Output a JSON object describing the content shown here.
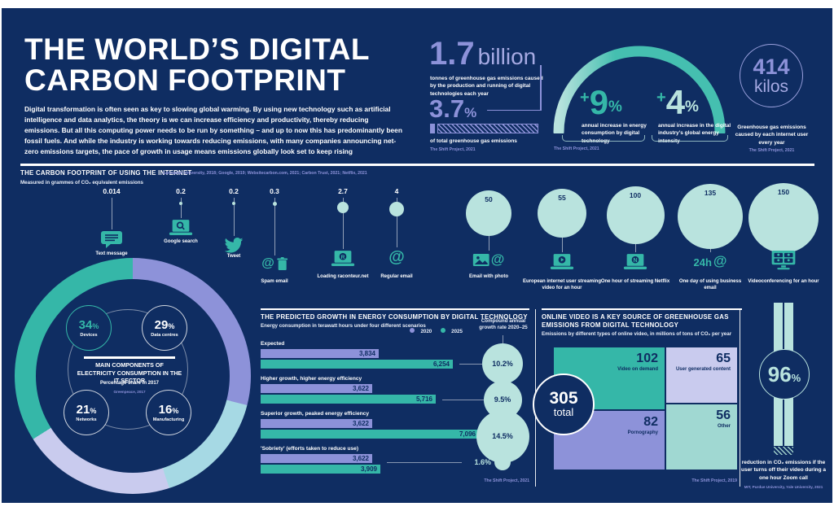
{
  "header": {
    "title_line1": "THE WORLD’S DIGITAL",
    "title_line2": "CARBON FOOTPRINT",
    "intro": "Digital transformation is often seen as key to slowing global warming. By using new technology such as artificial intelligence and data analytics, the theory is we can increase efficiency and productivity, thereby reducing emissions. But all this computing power needs to be run by something – and up to now this has predominantly been fossil fuels. And while the industry is working towards reducing emissions, with many companies announcing net-zero emissions targets, the pace of growth in usage means emissions globally look set to keep rising"
  },
  "colors": {
    "navy": "#0f2d62",
    "teal": "#35b7a8",
    "teal_bright": "#45bfb0",
    "teal_light": "#b9e3de",
    "purple": "#8d92d9",
    "lavender": "#c9cbee",
    "pale_teal": "#a0d8d2",
    "pale_blue": "#a6d9e4",
    "white": "#ffffff"
  },
  "stats": {
    "billion": {
      "num": "1.7",
      "unit": "billion",
      "desc": "tonnes of greenhouse gas emissions caused by the production and running of digital technologies each year"
    },
    "share": {
      "num": "3.7",
      "unit": "%",
      "desc": "of total greenhouse gas emissions",
      "source": "The Shift Project, 2021",
      "value": 3.7
    },
    "growth": {
      "left": {
        "sign": "+",
        "num": "9",
        "unit": "%",
        "desc": "annual increase in energy consumption by digital technology"
      },
      "right": {
        "sign": "+",
        "num": "4",
        "unit": "%",
        "desc": "annual increase in the digital industry’s global energy intensity"
      },
      "source": "The Shift Project, 2021"
    },
    "kilos": {
      "num": "414",
      "unit": "kilos",
      "desc": "Greenhouse gas emissions caused by each internet user every year",
      "source": "The Shift Project, 2021"
    }
  },
  "footprint": {
    "title": "THE CARBON FOOTPRINT OF USING THE INTERNET",
    "sources": "Lancaster University, 2018; Google, 2019; Websitecarbon.com, 2021; Carbon Trust, 2021; Netflix, 2021",
    "subtitle": "Measured in grammes of CO₂ equivalent emissions",
    "items": [
      {
        "display": "0.014",
        "value": 0.014,
        "label": "Text message",
        "icon": "message-icon"
      },
      {
        "display": "0.2",
        "value": 0.2,
        "label": "Google search",
        "icon": "laptop-search-icon"
      },
      {
        "display": "0.2",
        "value": 0.2,
        "label": "Tweet",
        "icon": "twitter-bird-icon"
      },
      {
        "display": "0.3",
        "value": 0.3,
        "label": "Spam email",
        "icon": "at-trash-icon"
      },
      {
        "display": "2.7",
        "value": 2.7,
        "label": "Loading raconteur.net",
        "icon": "laptop-loading-icon"
      },
      {
        "display": "4",
        "value": 4,
        "label": "Regular email",
        "icon": "at-sign-icon"
      },
      {
        "display": "50",
        "value": 50,
        "label": "Email with photo",
        "icon": "photo-at-icon"
      },
      {
        "display": "55",
        "value": 55,
        "label": "European internet user streaming video for an hour",
        "icon": "laptop-play-icon"
      },
      {
        "display": "100",
        "value": 100,
        "label": "One hour of streaming Netflix",
        "icon": "laptop-netflix-icon"
      },
      {
        "display": "135",
        "value": 135,
        "label": "One day of using business email",
        "icon": "24h-at-icon"
      },
      {
        "display": "150",
        "value": 150,
        "label": "Videoconferencing for an hour",
        "icon": "video-grid-icon"
      }
    ]
  },
  "donut": {
    "heading": "MAIN COMPONENTS OF ELECTRICITY CONSUMPTION IN THE IT SECTOR",
    "subheading": "Percentage share in 2017",
    "source": "Greenpeace, 2017",
    "components": [
      {
        "name": "Devices",
        "share": 34,
        "color": "#35b7a8"
      },
      {
        "name": "Data centres",
        "share": 29,
        "color": "#8d92d9"
      },
      {
        "name": "Networks",
        "share": 21,
        "color": "#c9cbee"
      },
      {
        "name": "Manufacturing",
        "share": 16,
        "color": "#a6d9e4"
      }
    ]
  },
  "energy": {
    "title": "THE PREDICTED GROWTH IN ENERGY CONSUMPTION BY DIGITAL TECHNOLOGY",
    "subtitle": "Energy consumption in terawatt hours under four different scenarios",
    "legend": [
      {
        "label": "2020",
        "color": "#8d92d9"
      },
      {
        "label": "2025",
        "color": "#35b7a8"
      }
    ],
    "cagr_label": "Compound annual growth rate 2020–25",
    "source": "The Shift Project, 2021",
    "scenarios": [
      {
        "label": "Expected",
        "y2020": 3834,
        "y2025": 6254,
        "cagr": "10.2%",
        "cagr_value": 10.2
      },
      {
        "label": "Higher growth, higher energy efficiency",
        "y2020": 3622,
        "y2025": 5716,
        "cagr": "9.5%",
        "cagr_value": 9.5
      },
      {
        "label": "Superior growth, peaked energy efficiency",
        "y2020": 3622,
        "y2025": 7096,
        "cagr": "14.5%",
        "cagr_value": 14.5
      },
      {
        "label": "'Sobriety' (efforts taken to reduce use)",
        "y2020": 3622,
        "y2025": 3909,
        "cagr": "1.6%",
        "cagr_value": 1.6
      }
    ]
  },
  "video": {
    "title": "ONLINE VIDEO IS A KEY SOURCE OF GREENHOUSE GAS EMISSIONS FROM DIGITAL TECHNOLOGY",
    "subtitle": "Emissions by different types of online video, in millions of tons of CO₂ per year",
    "total_value": "305",
    "total_label": "total",
    "source": "The Shift Project, 2019",
    "cells": [
      {
        "value": 102,
        "label": "Video on demand",
        "color": "#35b7a8"
      },
      {
        "value": 65,
        "label": "User generated content",
        "color": "#c9cbee"
      },
      {
        "value": 82,
        "label": "Pornography",
        "color": "#8d92d9"
      },
      {
        "value": 56,
        "label": "Other",
        "color": "#a0d8d2"
      }
    ]
  },
  "zoom": {
    "num": "96",
    "unit": "%",
    "desc": "reduction in CO₂ emissions if the user turns off their video during a one hour Zoom call",
    "source": "MIT, Purdue University, Yale University, 2021"
  },
  "chart_data": [
    {
      "type": "scatter",
      "title": "THE CARBON FOOTPRINT OF USING THE INTERNET",
      "ylabel": "grammes of CO₂ equivalent emissions",
      "categories": [
        "Text message",
        "Google search",
        "Tweet",
        "Spam email",
        "Loading raconteur.net",
        "Regular email",
        "Email with photo",
        "European internet user streaming video for an hour",
        "One hour of streaming Netflix",
        "One day of using business email",
        "Videoconferencing for an hour"
      ],
      "values": [
        0.014,
        0.2,
        0.2,
        0.3,
        2.7,
        4,
        50,
        55,
        100,
        135,
        150
      ]
    },
    {
      "type": "pie",
      "title": "MAIN COMPONENTS OF ELECTRICITY CONSUMPTION IN THE IT SECTOR",
      "subtitle": "Percentage share in 2017",
      "categories": [
        "Devices",
        "Data centres",
        "Networks",
        "Manufacturing"
      ],
      "values": [
        34,
        29,
        21,
        16
      ]
    },
    {
      "type": "bar",
      "title": "THE PREDICTED GROWTH IN ENERGY CONSUMPTION BY DIGITAL TECHNOLOGY",
      "xlabel": "Energy consumption in terawatt hours",
      "categories": [
        "Expected",
        "Higher growth, higher energy efficiency",
        "Superior growth, peaked energy efficiency",
        "'Sobriety' (efforts taken to reduce use)"
      ],
      "series": [
        {
          "name": "2020",
          "values": [
            3834,
            3622,
            3622,
            3622
          ]
        },
        {
          "name": "2025",
          "values": [
            6254,
            5716,
            7096,
            3909
          ]
        }
      ],
      "annotations": {
        "compound_annual_growth_rate_2020_25": [
          "10.2%",
          "9.5%",
          "14.5%",
          "1.6%"
        ]
      },
      "legend_position": "top"
    },
    {
      "type": "pie",
      "variant": "treemap",
      "title": "ONLINE VIDEO IS A KEY SOURCE OF GREENHOUSE GAS EMISSIONS FROM DIGITAL TECHNOLOGY",
      "subtitle": "Emissions by different types of online video, in millions of tons of CO₂ per year",
      "categories": [
        "Video on demand",
        "User generated content",
        "Pornography",
        "Other"
      ],
      "values": [
        102,
        65,
        82,
        56
      ],
      "total": 305
    }
  ]
}
